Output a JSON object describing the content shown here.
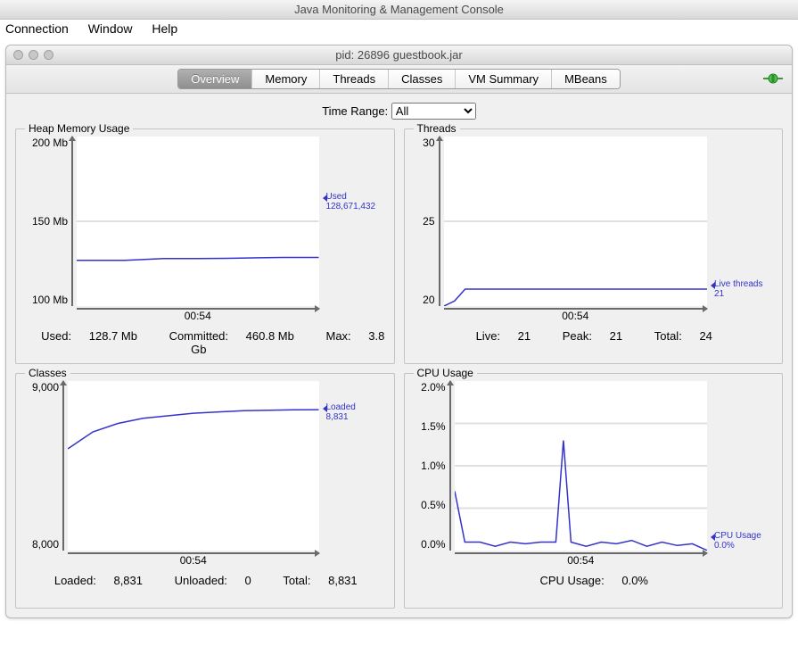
{
  "app_title": "Java Monitoring & Management Console",
  "menubar": {
    "connection": "Connection",
    "window": "Window",
    "help": "Help"
  },
  "inner_window_title": "pid: 26896 guestbook.jar",
  "tabs": {
    "overview": "Overview",
    "memory": "Memory",
    "threads": "Threads",
    "classes": "Classes",
    "vmsummary": "VM Summary",
    "mbeans": "MBeans",
    "active": "overview"
  },
  "time_range": {
    "label": "Time Range:",
    "selected": "All"
  },
  "colors": {
    "line": "#3333cc",
    "grid": "#e0e0e0",
    "axis": "#6a6a6a",
    "bg": "#ffffff",
    "panel_bg": "#f0f0f0"
  },
  "heap": {
    "title": "Heap Memory Usage",
    "y_ticks": [
      "200 Mb",
      "150 Mb",
      "100 Mb"
    ],
    "x_tick": "00:54",
    "legend_name": "Used",
    "legend_value": "128,671,432",
    "series": [
      [
        0,
        127
      ],
      [
        10,
        127
      ],
      [
        20,
        127
      ],
      [
        28,
        127.5
      ],
      [
        36,
        128
      ],
      [
        50,
        128
      ],
      [
        65,
        128.2
      ],
      [
        75,
        128.5
      ],
      [
        85,
        128.7
      ],
      [
        100,
        128.7
      ]
    ],
    "ylim": [
      100,
      200
    ],
    "summary": {
      "used_l": "Used:",
      "used_v": "128.7 Mb",
      "committed_l": "Committed:",
      "committed_v": "460.8 Mb",
      "max_l": "Max:",
      "max_v": "3.8 Gb"
    }
  },
  "threads": {
    "title": "Threads",
    "y_ticks": [
      "30",
      "25",
      "20"
    ],
    "x_tick": "00:54",
    "legend_name": "Live threads",
    "legend_value": "21",
    "series": [
      [
        0,
        20
      ],
      [
        4,
        20.3
      ],
      [
        8,
        21
      ],
      [
        20,
        21
      ],
      [
        40,
        21
      ],
      [
        60,
        21
      ],
      [
        80,
        21
      ],
      [
        100,
        21
      ]
    ],
    "ylim": [
      20,
      30
    ],
    "summary": {
      "live_l": "Live:",
      "live_v": "21",
      "peak_l": "Peak:",
      "peak_v": "21",
      "total_l": "Total:",
      "total_v": "24"
    }
  },
  "classes": {
    "title": "Classes",
    "y_ticks": [
      "9,000",
      "8,000"
    ],
    "x_tick": "00:54",
    "legend_name": "Loaded",
    "legend_value": "8,831",
    "series": [
      [
        0,
        8600
      ],
      [
        5,
        8650
      ],
      [
        10,
        8700
      ],
      [
        20,
        8750
      ],
      [
        30,
        8780
      ],
      [
        50,
        8810
      ],
      [
        70,
        8825
      ],
      [
        90,
        8830
      ],
      [
        100,
        8831
      ]
    ],
    "ylim": [
      8000,
      9000
    ],
    "summary": {
      "loaded_l": "Loaded:",
      "loaded_v": "8,831",
      "unloaded_l": "Unloaded:",
      "unloaded_v": "0",
      "total_l": "Total:",
      "total_v": "8,831"
    }
  },
  "cpu": {
    "title": "CPU Usage",
    "y_ticks": [
      "2.0%",
      "1.5%",
      "1.0%",
      "0.5%",
      "0.0%"
    ],
    "x_tick": "00:54",
    "legend_name": "CPU Usage",
    "legend_value": "0.0%",
    "series": [
      [
        0,
        0.7
      ],
      [
        4,
        0.1
      ],
      [
        10,
        0.1
      ],
      [
        16,
        0.05
      ],
      [
        22,
        0.1
      ],
      [
        28,
        0.08
      ],
      [
        34,
        0.1
      ],
      [
        40,
        0.1
      ],
      [
        43,
        1.3
      ],
      [
        46,
        0.1
      ],
      [
        52,
        0.05
      ],
      [
        58,
        0.1
      ],
      [
        64,
        0.08
      ],
      [
        70,
        0.12
      ],
      [
        76,
        0.05
      ],
      [
        82,
        0.1
      ],
      [
        88,
        0.06
      ],
      [
        94,
        0.08
      ],
      [
        100,
        0.0
      ]
    ],
    "ylim": [
      0.0,
      2.0
    ],
    "summary": {
      "cpu_l": "CPU Usage:",
      "cpu_v": "0.0%"
    }
  }
}
